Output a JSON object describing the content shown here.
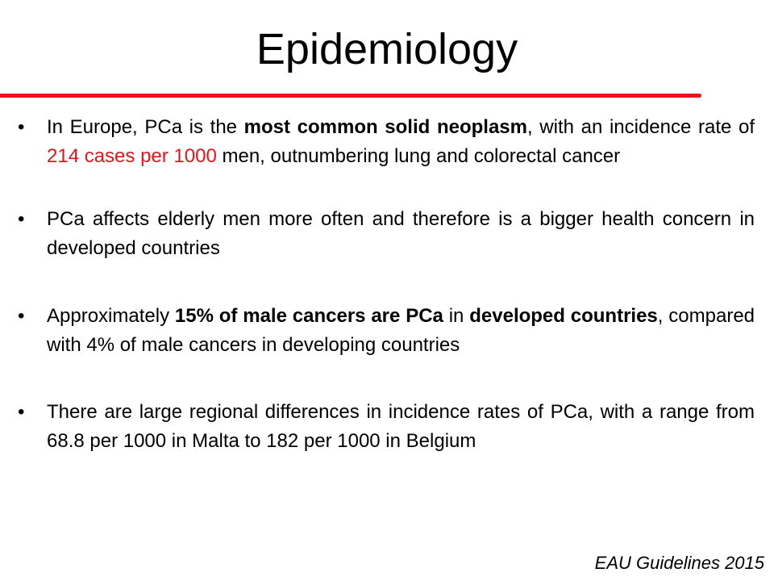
{
  "slide": {
    "title": "Epidemiology",
    "accent_color": "#e3171b",
    "bullet_glyph": "•"
  },
  "bullets": [
    {
      "t1": "In Europe, PCa is the ",
      "b1": "most common solid neoplasm",
      "t2": ", with an incidence rate of ",
      "red": "214 cases per 1000",
      "t3": " men, outnumbering lung and colorectal cancer"
    },
    {
      "text": "PCa affects elderly men more often and therefore is a bigger health concern in developed countries"
    },
    {
      "t1": "Approximately ",
      "b1": "15% of male cancers are PCa",
      "t2": " in ",
      "b2": "developed countries",
      "t3": ", compared with 4% of male cancers in developing countries"
    },
    {
      "text": "There are large regional differences in incidence rates of PCa, with a range from 68.8 per 1000 in Malta to 182 per 1000 in Belgium"
    }
  ],
  "footer": {
    "citation": "EAU Guidelines 2015"
  }
}
